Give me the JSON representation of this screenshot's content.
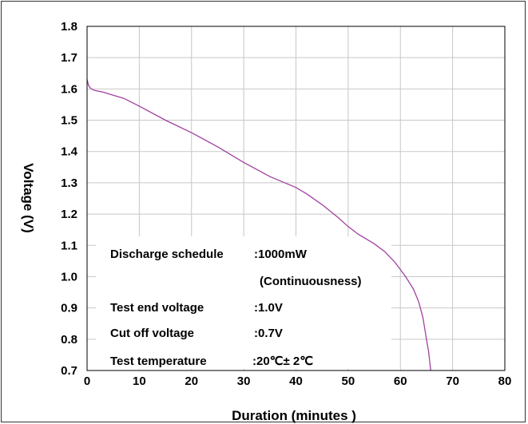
{
  "chart_data": {
    "type": "line",
    "xlabel": "Duration (minutes )",
    "ylabel": "Voltage (V)",
    "xlim": [
      0,
      80
    ],
    "ylim": [
      0.7,
      1.8
    ],
    "x_ticks": [
      "0",
      "10",
      "20",
      "30",
      "40",
      "50",
      "60",
      "70",
      "80"
    ],
    "y_ticks": [
      "0.7",
      "0.8",
      "0.9",
      "1.0",
      "1.1",
      "1.2",
      "1.3",
      "1.4",
      "1.5",
      "1.6",
      "1.7",
      "1.8"
    ],
    "grid": true,
    "line_color": "#a040a0",
    "series": [
      {
        "x": [
          0,
          0.3,
          0.8,
          1.5,
          3,
          5,
          7,
          10,
          15,
          20,
          25,
          30,
          35,
          40,
          42,
          45,
          48,
          50,
          52,
          55,
          57,
          59,
          61,
          62.5,
          63.5,
          64.3,
          65,
          65.2,
          65.4,
          65.6,
          65.8
        ],
        "y": [
          1.63,
          1.61,
          1.6,
          1.595,
          1.59,
          1.58,
          1.57,
          1.545,
          1.5,
          1.46,
          1.415,
          1.365,
          1.32,
          1.285,
          1.265,
          1.23,
          1.19,
          1.16,
          1.135,
          1.105,
          1.08,
          1.045,
          1.0,
          0.96,
          0.92,
          0.87,
          0.8,
          0.78,
          0.76,
          0.73,
          0.7
        ]
      }
    ],
    "annotations": [
      {
        "label": "Discharge schedule",
        "value": ":1000mW"
      },
      {
        "label": "",
        "value": "(Continuousness)"
      },
      {
        "label": "Test end voltage",
        "value": ":1.0V"
      },
      {
        "label": "Cut off voltage",
        "value": ":0.7V"
      },
      {
        "label": "Test temperature",
        "value": ":20℃± 2℃"
      }
    ]
  }
}
